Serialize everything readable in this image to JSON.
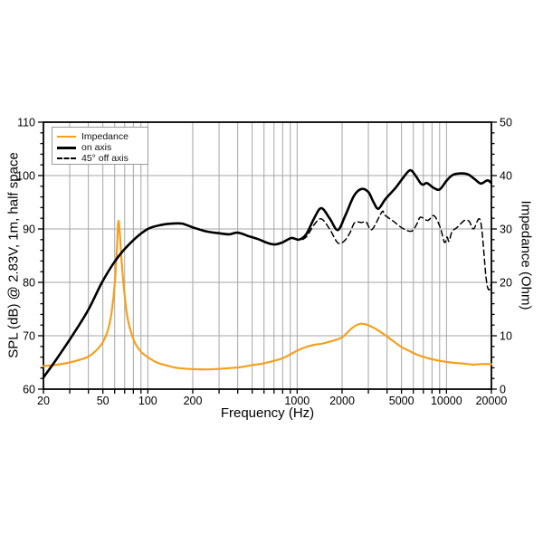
{
  "legend": {
    "items": [
      {
        "label": "Impedance",
        "style": "solid-orange"
      },
      {
        "label": "on axis",
        "style": "solid-black"
      },
      {
        "label": "45° off axis",
        "style": "dashed-black"
      }
    ]
  },
  "chart_data": {
    "type": "line",
    "x_scale": "log",
    "xlabel": "Frequency (Hz)",
    "ylabel_left": "SPL (dB) @ 2.83V, 1m, half space",
    "ylabel_right": "Impedance (Ohm)",
    "xlim": [
      20,
      20000
    ],
    "ylim_left": [
      60,
      110
    ],
    "ylim_right": [
      0,
      50
    ],
    "x_ticks_labeled": [
      20,
      50,
      100,
      200,
      1000,
      2000,
      5000,
      10000,
      20000
    ],
    "x_ticks_all": [
      20,
      30,
      40,
      50,
      60,
      70,
      80,
      90,
      100,
      200,
      300,
      400,
      500,
      600,
      700,
      800,
      900,
      1000,
      2000,
      3000,
      4000,
      5000,
      6000,
      7000,
      8000,
      9000,
      10000,
      20000
    ],
    "y_left_ticks_labeled": [
      60,
      70,
      80,
      90,
      100,
      110
    ],
    "y_right_ticks_labeled": [
      0,
      10,
      20,
      30,
      40,
      50
    ],
    "y_minor_step": 2,
    "grid_on": true,
    "grid_color": "#a6a6a6",
    "frame_color": "#000000",
    "legend_position": "top-left",
    "series": [
      {
        "name": "Impedance",
        "axis": "right",
        "unit": "Ohm",
        "color": "#F5A01E",
        "width": 2.2,
        "dash": null,
        "points": [
          [
            20,
            4.3
          ],
          [
            25,
            4.6
          ],
          [
            30,
            5.0
          ],
          [
            35,
            5.5
          ],
          [
            40,
            6.1
          ],
          [
            45,
            7.2
          ],
          [
            50,
            8.8
          ],
          [
            54,
            11.0
          ],
          [
            57,
            14.0
          ],
          [
            60,
            19.5
          ],
          [
            62,
            26.0
          ],
          [
            63.5,
            31.4
          ],
          [
            65,
            29.0
          ],
          [
            67,
            23.5
          ],
          [
            70,
            17.5
          ],
          [
            73,
            13.5
          ],
          [
            77,
            10.8
          ],
          [
            82,
            8.7
          ],
          [
            90,
            7.0
          ],
          [
            100,
            6.0
          ],
          [
            115,
            5.0
          ],
          [
            135,
            4.4
          ],
          [
            160,
            3.95
          ],
          [
            200,
            3.75
          ],
          [
            250,
            3.7
          ],
          [
            300,
            3.8
          ],
          [
            360,
            3.95
          ],
          [
            425,
            4.15
          ],
          [
            500,
            4.5
          ],
          [
            600,
            4.85
          ],
          [
            700,
            5.3
          ],
          [
            800,
            5.8
          ],
          [
            900,
            6.5
          ],
          [
            1000,
            7.2
          ],
          [
            1150,
            7.9
          ],
          [
            1300,
            8.3
          ],
          [
            1450,
            8.5
          ],
          [
            1700,
            9.0
          ],
          [
            2000,
            9.7
          ],
          [
            2300,
            11.3
          ],
          [
            2600,
            12.2
          ],
          [
            2900,
            12.1
          ],
          [
            3300,
            11.4
          ],
          [
            3800,
            10.3
          ],
          [
            4400,
            9.0
          ],
          [
            5000,
            7.9
          ],
          [
            5600,
            7.2
          ],
          [
            6300,
            6.5
          ],
          [
            7100,
            6.0
          ],
          [
            8000,
            5.6
          ],
          [
            9000,
            5.3
          ],
          [
            10000,
            5.1
          ],
          [
            11500,
            4.9
          ],
          [
            13000,
            4.8
          ],
          [
            15000,
            4.6
          ],
          [
            17000,
            4.7
          ],
          [
            20000,
            4.7
          ]
        ]
      },
      {
        "name": "on axis",
        "axis": "left",
        "unit": "dB",
        "color": "#000000",
        "width": 2.6,
        "dash": null,
        "points": [
          [
            20,
            62.2
          ],
          [
            25,
            66.0
          ],
          [
            31.5,
            70.2
          ],
          [
            40,
            74.9
          ],
          [
            50,
            80.3
          ],
          [
            63,
            84.7
          ],
          [
            80,
            87.9
          ],
          [
            100,
            90.0
          ],
          [
            125,
            90.8
          ],
          [
            145,
            91.0
          ],
          [
            170,
            91.0
          ],
          [
            200,
            90.3
          ],
          [
            250,
            89.5
          ],
          [
            300,
            89.2
          ],
          [
            350,
            89.0
          ],
          [
            400,
            89.3
          ],
          [
            480,
            88.6
          ],
          [
            560,
            88.0
          ],
          [
            630,
            87.4
          ],
          [
            710,
            87.1
          ],
          [
            800,
            87.5
          ],
          [
            915,
            88.3
          ],
          [
            1030,
            88.0
          ],
          [
            1150,
            89.0
          ],
          [
            1300,
            92.0
          ],
          [
            1450,
            93.9
          ],
          [
            1650,
            92.0
          ],
          [
            1870,
            89.8
          ],
          [
            2100,
            92.5
          ],
          [
            2400,
            96.2
          ],
          [
            2700,
            97.5
          ],
          [
            3000,
            96.9
          ],
          [
            3250,
            95.0
          ],
          [
            3500,
            93.8
          ],
          [
            3900,
            95.6
          ],
          [
            4560,
            97.7
          ],
          [
            5100,
            99.5
          ],
          [
            5700,
            101.0
          ],
          [
            6200,
            100.0
          ],
          [
            6700,
            98.6
          ],
          [
            7000,
            98.3
          ],
          [
            7400,
            98.6
          ],
          [
            8200,
            97.7
          ],
          [
            9000,
            97.4
          ],
          [
            10000,
            99.0
          ],
          [
            11000,
            100.1
          ],
          [
            12500,
            100.4
          ],
          [
            14000,
            100.2
          ],
          [
            15500,
            99.3
          ],
          [
            17000,
            98.5
          ],
          [
            18800,
            99.1
          ],
          [
            20000,
            98.6
          ]
        ]
      },
      {
        "name": "45° off axis",
        "axis": "left",
        "unit": "dB",
        "color": "#000000",
        "width": 1.5,
        "dash": "6 4",
        "points": [
          [
            20,
            62.2
          ],
          [
            25,
            66.0
          ],
          [
            31.5,
            70.2
          ],
          [
            40,
            74.9
          ],
          [
            50,
            80.3
          ],
          [
            63,
            84.7
          ],
          [
            80,
            87.9
          ],
          [
            100,
            90.0
          ],
          [
            125,
            90.8
          ],
          [
            145,
            91.0
          ],
          [
            170,
            91.0
          ],
          [
            200,
            90.3
          ],
          [
            250,
            89.5
          ],
          [
            300,
            89.2
          ],
          [
            350,
            89.0
          ],
          [
            400,
            89.3
          ],
          [
            480,
            88.6
          ],
          [
            560,
            88.0
          ],
          [
            630,
            87.4
          ],
          [
            710,
            87.1
          ],
          [
            800,
            87.5
          ],
          [
            915,
            88.3
          ],
          [
            1030,
            87.9
          ],
          [
            1150,
            88.5
          ],
          [
            1300,
            90.8
          ],
          [
            1450,
            91.9
          ],
          [
            1650,
            90.0
          ],
          [
            1870,
            87.4
          ],
          [
            2060,
            87.7
          ],
          [
            2250,
            89.2
          ],
          [
            2430,
            91.2
          ],
          [
            2700,
            91.2
          ],
          [
            2900,
            91.3
          ],
          [
            3170,
            89.9
          ],
          [
            3700,
            93.2
          ],
          [
            3860,
            92.6
          ],
          [
            4430,
            91.4
          ],
          [
            5100,
            90.1
          ],
          [
            5850,
            89.6
          ],
          [
            6350,
            91.0
          ],
          [
            6700,
            92.2
          ],
          [
            7500,
            91.6
          ],
          [
            8250,
            92.5
          ],
          [
            9075,
            90.3
          ],
          [
            9700,
            87.5
          ],
          [
            10100,
            88.5
          ],
          [
            10400,
            87.7
          ],
          [
            10900,
            89.5
          ],
          [
            11800,
            90.3
          ],
          [
            13200,
            91.6
          ],
          [
            14200,
            91.4
          ],
          [
            15200,
            90.0
          ],
          [
            16900,
            91.5
          ],
          [
            18400,
            81.0
          ],
          [
            19200,
            78.6
          ],
          [
            20000,
            79.8
          ]
        ]
      }
    ]
  }
}
